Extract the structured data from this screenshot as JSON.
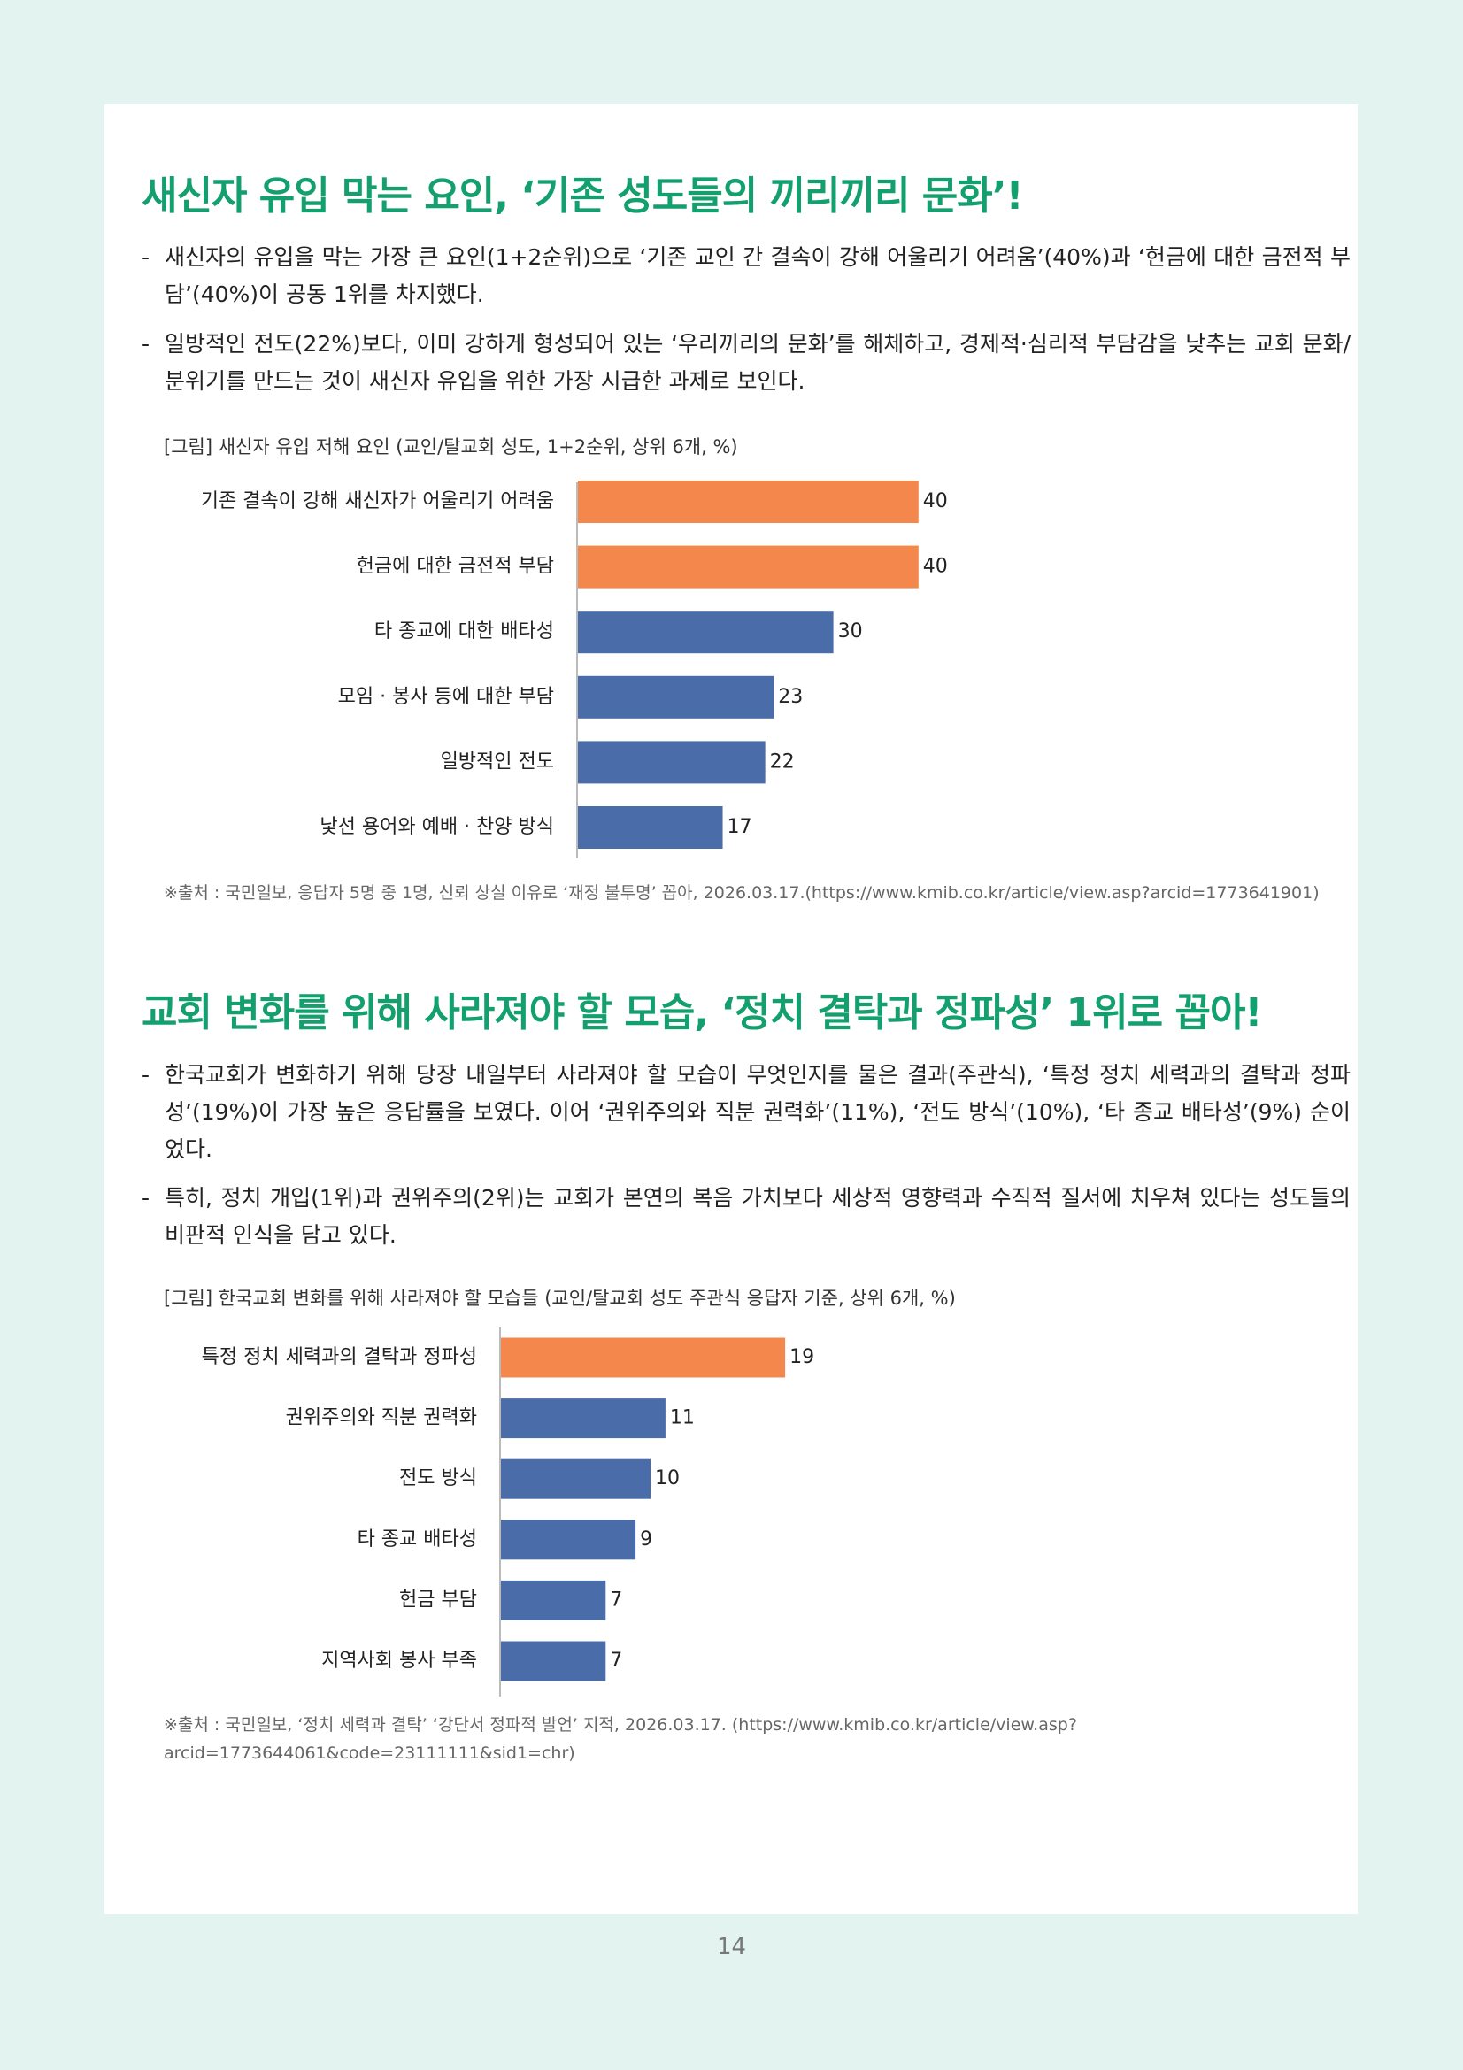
{
  "sections": [
    {
      "heading": "새신자 유입 막는 요인, ‘기존 성도들의 끼리끼리 문화’!",
      "bullets": [
        "새신자의 유입을 막는 가장 큰 요인(1+2순위)으로 ‘기존 교인 간 결속이 강해 어울리기 어려움’(40%)과 ‘헌금에 대한 금전적 부담’(40%)이 공동 1위를 차지했다.",
        "일방적인 전도(22%)보다, 이미 강하게 형성되어 있는 ‘우리끼리의 문화’를 해체하고, 경제적·심리적 부담감을 낮추는 교회 문화/분위기를 만드는 것이 새신자 유입을 위한 가장 시급한 과제로 보인다."
      ]
    },
    {
      "heading": "교회 변화를 위해 사라져야 할 모습, ‘정치 결탁과 정파성’ 1위로 꼽아!",
      "bullets": [
        "한국교회가 변화하기 위해 당장 내일부터 사라져야 할 모습이 무엇인지를 물은 결과(주관식), ‘특정 정치 세력과의 결탁과 정파성’(19%)이 가장 높은 응답률을 보였다. 이어 ‘권위주의와 직분 권력화’(11%), ‘전도 방식’(10%), ‘타 종교 배타성’(9%) 순이었다.",
        "특히, 정치 개입(1위)과 권위주의(2위)는 교회가 본연의 복음 가치보다 세상적 영향력과 수직적 질서에 치우쳐 있다는 성도들의 비판적 인식을 담고 있다."
      ]
    }
  ],
  "chart_data": [
    {
      "type": "bar",
      "title": "[그림] 새신자 유입 저해 요인 (교인/탈교회 성도, 1+2순위, 상위 6개, %)",
      "categories": [
        "기존 결속이 강해 새신자가 어울리기 어려움",
        "헌금에 대한 금전적 부담",
        "타 종교에 대한 배타성",
        "모임 · 봉사 등에 대한 부담",
        "일방적인 전도",
        "낯선 용어와 예배 · 찬양 방식"
      ],
      "values": [
        40,
        40,
        30,
        23,
        22,
        17
      ],
      "colors": [
        "#f4874b",
        "#f4874b",
        "#4a6ca8",
        "#4a6ca8",
        "#4a6ca8",
        "#4a6ca8"
      ],
      "source": "※출처 : 국민일보, 응답자 5명 중 1명, 신뢰 상실 이유로 ‘재정 불투명’ 꼽아, 2026.03.17.(https://www.kmib.co.kr/article/view.asp?arcid=1773641901)"
    },
    {
      "type": "bar",
      "title": "[그림] 한국교회 변화를 위해 사라져야 할 모습들 (교인/탈교회 성도 주관식 응답자 기준, 상위 6개, %)",
      "categories": [
        "특정 정치 세력과의 결탁과 정파성",
        "권위주의와 직분 권력화",
        "전도 방식",
        "타 종교 배타성",
        "헌금 부담",
        "지역사회 봉사 부족"
      ],
      "values": [
        19,
        11,
        10,
        9,
        7,
        7
      ],
      "colors": [
        "#f4874b",
        "#4a6ca8",
        "#4a6ca8",
        "#4a6ca8",
        "#4a6ca8",
        "#4a6ca8"
      ],
      "source": "※출처 : 국민일보, ‘정치 세력과 결탁’ ‘강단서 정파적 발언’ 지적, 2026.03.17. (https://www.kmib.co.kr/article/view.asp?arcid=1773644061&code=23111111&sid1=chr)"
    }
  ],
  "page_number": "14"
}
